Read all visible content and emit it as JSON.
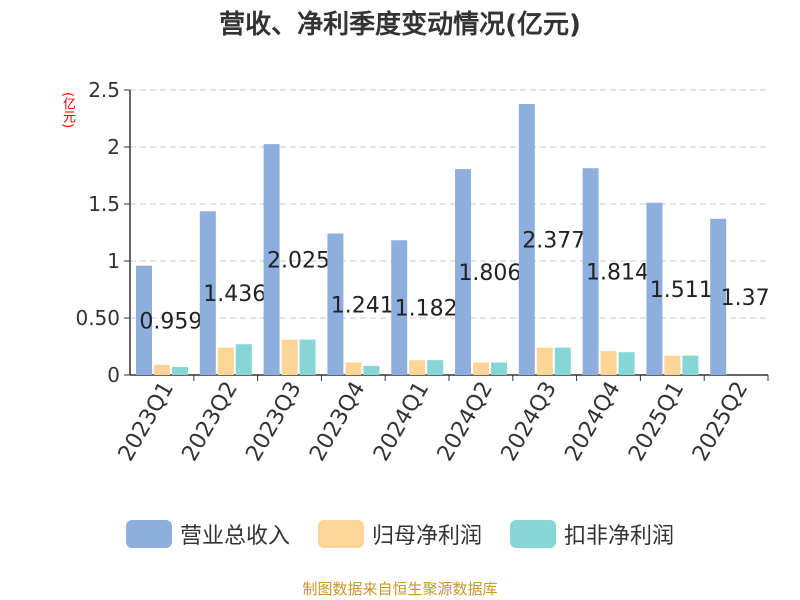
{
  "chart_data": {
    "type": "bar",
    "title": "营收、净利季度变动情况(亿元)",
    "ylabel": "(亿元)",
    "xlabel": "",
    "ylim": [
      0,
      2.5
    ],
    "yticks": [
      0,
      0.5,
      1,
      1.5,
      2,
      2.5
    ],
    "ytick_labels": [
      "0",
      "0.50",
      "1",
      "1.5",
      "2",
      "2.5"
    ],
    "grid": true,
    "legend_position": "bottom",
    "categories": [
      "2023Q1",
      "2023Q2",
      "2023Q3",
      "2023Q4",
      "2024Q1",
      "2024Q2",
      "2024Q3",
      "2024Q4",
      "2025Q1",
      "2025Q2"
    ],
    "series": [
      {
        "name": "营业总收入",
        "color": "#8eaedd",
        "values": [
          0.959,
          1.436,
          2.025,
          1.241,
          1.182,
          1.806,
          2.377,
          1.814,
          1.511,
          1.37
        ],
        "data_labels": [
          "0.959",
          "1.436",
          "2.025",
          "1.241",
          "1.182",
          "1.806",
          "2.377",
          "1.814",
          "1.511",
          "1.37"
        ]
      },
      {
        "name": "归母净利润",
        "color": "#fdd597",
        "values": [
          0.09,
          0.24,
          0.31,
          0.11,
          0.13,
          0.11,
          0.24,
          0.21,
          0.17,
          null
        ]
      },
      {
        "name": "扣非净利润",
        "color": "#86d5d7",
        "values": [
          0.07,
          0.27,
          0.31,
          0.08,
          0.13,
          0.11,
          0.24,
          0.2,
          0.17,
          null
        ]
      }
    ]
  },
  "source": "制图数据来自恒生聚源数据库"
}
